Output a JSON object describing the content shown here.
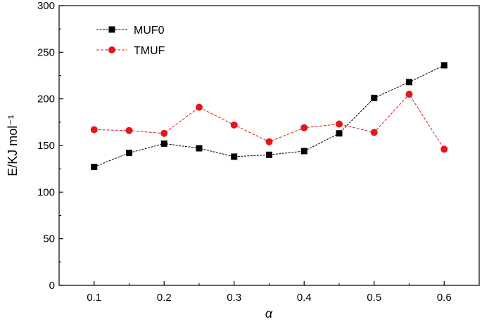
{
  "chart_data": {
    "type": "line",
    "xlabel": "α",
    "ylabel": "E/KJ mol⁻¹",
    "xlim": [
      0.05,
      0.65
    ],
    "ylim": [
      0,
      300
    ],
    "x_ticks": [
      0.1,
      0.2,
      0.3,
      0.4,
      0.5,
      0.6
    ],
    "x_tick_labels": [
      "0.1",
      "0.2",
      "0.3",
      "0.4",
      "0.5",
      "0.6"
    ],
    "y_ticks": [
      0,
      50,
      100,
      150,
      200,
      250,
      300
    ],
    "y_tick_labels": [
      "0",
      "50",
      "100",
      "150",
      "200",
      "250",
      "300"
    ],
    "grid": false,
    "legend_position": "top-left",
    "x": [
      0.1,
      0.15,
      0.2,
      0.25,
      0.3,
      0.35,
      0.4,
      0.45,
      0.5,
      0.55,
      0.6
    ],
    "series": [
      {
        "name": "MUF0",
        "color": "#000000",
        "marker": "square",
        "values": [
          127,
          142,
          152,
          147,
          138,
          140,
          144,
          163,
          201,
          218,
          236
        ]
      },
      {
        "name": "TMUF",
        "color": "#e8141b",
        "marker": "circle",
        "values": [
          167,
          166,
          163,
          191,
          172,
          154,
          169,
          173,
          164,
          205,
          146
        ]
      }
    ]
  }
}
